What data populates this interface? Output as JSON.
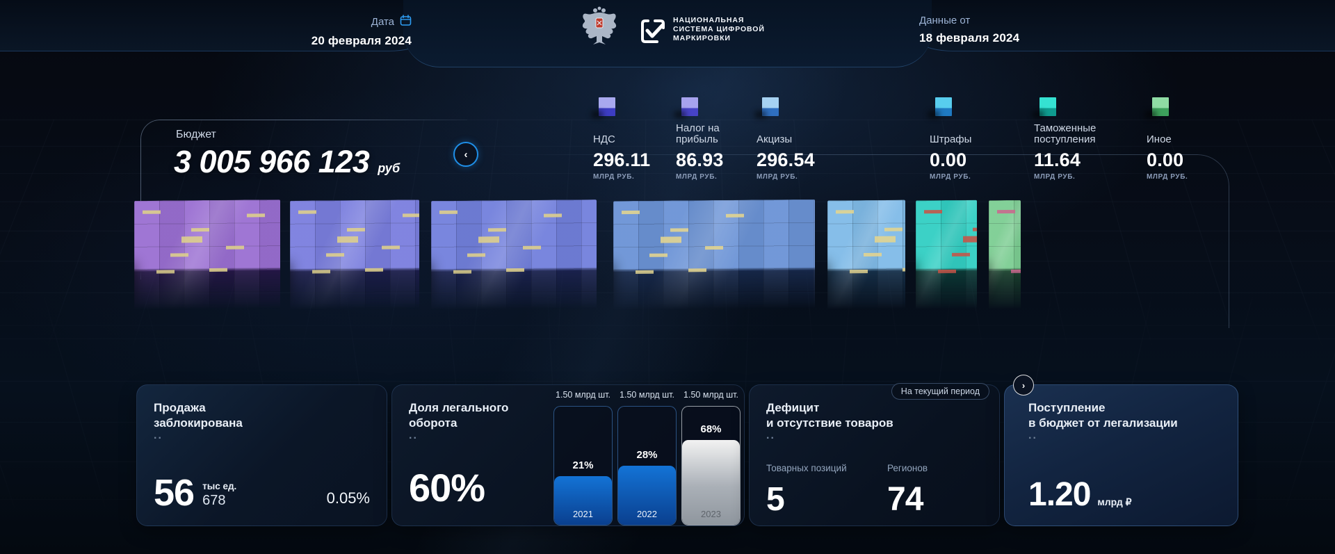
{
  "header": {
    "date_label": "Дата",
    "date_value": "20 февраля 2024",
    "data_from_label": "Данные от",
    "data_from_value": "18 февраля 2024",
    "logo_title": "НАЦИОНАЛЬНАЯ\nСИСТЕМА ЦИФРОВОЙ\nМАРКИРОВКИ"
  },
  "budget": {
    "label": "Бюджет",
    "value": "3 005 966 123",
    "currency": "руб"
  },
  "nav": {
    "prev_arrow": "‹",
    "next_arrow": "›"
  },
  "categories": [
    {
      "label": "НДС",
      "value": "296.11",
      "unit": "МЛРД РУБ.",
      "cube_top": "#a9a9ef",
      "cube_front": "#3d3dc2"
    },
    {
      "label": "Налог на прибыль",
      "value": "86.93",
      "unit": "МЛРД РУБ.",
      "cube_top": "#a7a3ee",
      "cube_front": "#4743c6"
    },
    {
      "label": "Акцизы",
      "value": "296.54",
      "unit": "МЛРД РУБ.",
      "cube_top": "#a6d2f2",
      "cube_front": "#2f6fc0"
    },
    {
      "label": "Штрафы",
      "value": "0.00",
      "unit": "МЛРД РУБ.",
      "cube_top": "#58cdee",
      "cube_front": "#1f7ac2"
    },
    {
      "label": "Таможенные поступления",
      "value": "11.64",
      "unit": "МЛРД РУБ.",
      "cube_top": "#35e2d2",
      "cube_front": "#0f9c90"
    },
    {
      "label": "Иное",
      "value": "0.00",
      "unit": "МЛРД РУБ.",
      "cube_top": "#8fdca4",
      "cube_front": "#3da05c"
    }
  ],
  "blocks": [
    {
      "top": "#9a6fd2",
      "deep": "#27184a",
      "dash": "#ddcf8d"
    },
    {
      "top": "#7a7ede",
      "deep": "#1d1f4e",
      "dash": "#ddcf8d"
    },
    {
      "top": "#7280dc",
      "deep": "#1c2452",
      "dash": "#ddcf8d"
    },
    {
      "top": "#6b93d6",
      "deep": "#182a4e",
      "dash": "#e2d491"
    },
    {
      "top": "#80bbe8",
      "deep": "#17334e",
      "dash": "#e2d491"
    },
    {
      "top": "#32cfc3",
      "deep": "#0d3e3a",
      "dash": "#c4574a"
    },
    {
      "top": "#7ccd92",
      "deep": "#1c4630",
      "dash": "#c96a8e"
    }
  ],
  "cards": {
    "dots": "..",
    "blocked": {
      "title": "Продажа\nзаблокирована",
      "value_main": "56",
      "value_unit": "тыс ед.",
      "value_sub": "678",
      "percent": "0.05%"
    },
    "legal_share": {
      "title": "Доля легального\nоборота",
      "value": "60%"
    },
    "deficit": {
      "title": "Дефицит\nи отсутствие товаров",
      "badge": "На текущий период",
      "metrics": [
        {
          "label": "Товарных позиций",
          "value": "5"
        },
        {
          "label": "Регионов",
          "value": "74"
        }
      ]
    },
    "legalization_income": {
      "title": "Поступление\nв бюджет от легализации",
      "value": "1.20",
      "unit": "млрд ₽"
    }
  },
  "chart_data": {
    "type": "bar",
    "title": "Доля легального оборота",
    "categories": [
      "2021",
      "2022",
      "2023"
    ],
    "values": [
      21,
      28,
      68
    ],
    "value_labels": [
      "21%",
      "28%",
      "68%"
    ],
    "bar_caps": [
      "1.50 млрд шт.",
      "1.50 млрд шт.",
      "1.50 млрд шт."
    ],
    "ylim": [
      0,
      100
    ],
    "bar_colors": [
      "#0f62c8",
      "#0f62c8",
      "#c0c6cc"
    ],
    "fill_ratios": [
      0.41,
      0.5,
      0.72
    ],
    "legend": "off",
    "grid": "off"
  }
}
